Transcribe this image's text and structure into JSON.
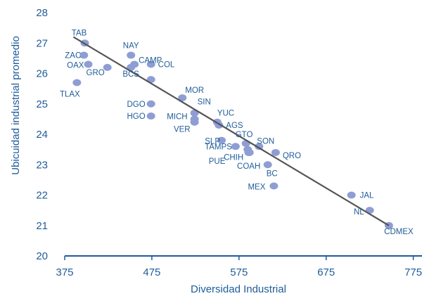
{
  "chart_data": {
    "type": "scatter",
    "xlabel": "Diversidad Industrial",
    "ylabel": "Ubicuidad industrial promedio",
    "xlim": [
      375,
      785
    ],
    "ylim": [
      20,
      28
    ],
    "xticks": [
      "375",
      "475",
      "575",
      "675",
      "775"
    ],
    "yticks": [
      "20",
      "21",
      "22",
      "23",
      "24",
      "25",
      "26",
      "27",
      "28"
    ],
    "grid": false,
    "points": [
      {
        "label": "TAB",
        "x": 398,
        "y": 27.0
      },
      {
        "label": "NAY",
        "x": 451,
        "y": 26.6
      },
      {
        "label": "ZAC",
        "x": 397,
        "y": 26.6
      },
      {
        "label": "CAMP",
        "x": 455,
        "y": 26.3
      },
      {
        "label": "COL",
        "x": 474,
        "y": 26.3
      },
      {
        "label": "OAX",
        "x": 402,
        "y": 26.3
      },
      {
        "label": "GRO",
        "x": 424,
        "y": 26.2
      },
      {
        "label": "BCS",
        "x": 451,
        "y": 26.2
      },
      {
        "label": "",
        "x": 474,
        "y": 25.8
      },
      {
        "label": "TLAX",
        "x": 389,
        "y": 25.7
      },
      {
        "label": "MOR",
        "x": 510,
        "y": 25.2
      },
      {
        "label": "DGO",
        "x": 474,
        "y": 25.0
      },
      {
        "label": "SIN",
        "x": 524,
        "y": 24.7
      },
      {
        "label": "HGO",
        "x": 474,
        "y": 24.6
      },
      {
        "label": "MICH",
        "x": 524,
        "y": 24.5
      },
      {
        "label": "VER",
        "x": 524,
        "y": 24.4
      },
      {
        "label": "YUC",
        "x": 550,
        "y": 24.4
      },
      {
        "label": "AGS",
        "x": 552,
        "y": 24.3
      },
      {
        "label": "SLP",
        "x": 555,
        "y": 23.8
      },
      {
        "label": "GTO",
        "x": 583,
        "y": 23.7
      },
      {
        "label": "TAMPS",
        "x": 571,
        "y": 23.6
      },
      {
        "label": "SON",
        "x": 598,
        "y": 23.6
      },
      {
        "label": "CHIH",
        "x": 585,
        "y": 23.5
      },
      {
        "label": "PUE",
        "x": 586,
        "y": 23.4
      },
      {
        "label": "QRO",
        "x": 617,
        "y": 23.4
      },
      {
        "label": "COAH",
        "x": 587,
        "y": 23.4
      },
      {
        "label": "BC",
        "x": 608,
        "y": 23.0
      },
      {
        "label": "MEX",
        "x": 615,
        "y": 22.3
      },
      {
        "label": "JAL",
        "x": 704,
        "y": 22.0
      },
      {
        "label": "NL",
        "x": 725,
        "y": 21.5
      },
      {
        "label": "CDMEX",
        "x": 747,
        "y": 21.0
      }
    ],
    "trendline": {
      "x": [
        385,
        747
      ],
      "y": [
        27.2,
        21.0
      ]
    },
    "colors": {
      "points": "#8e9ed4",
      "labels": "#1f5c99",
      "axis": "#1f5c99",
      "trendline": "#555555"
    }
  }
}
